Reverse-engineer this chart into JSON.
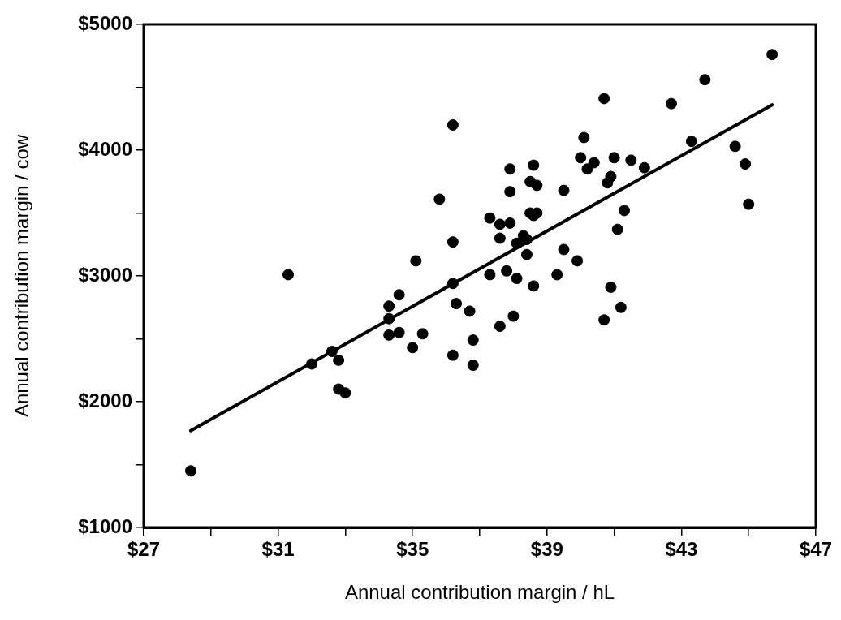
{
  "chart_data": {
    "type": "scatter",
    "xlabel": "Annual contribution margin / hL",
    "ylabel": "Annual contribution margin / cow",
    "xlim": [
      27,
      47
    ],
    "xticks": [
      {
        "value": 27,
        "label": "$27"
      },
      {
        "value": 29,
        "label": null
      },
      {
        "value": 31,
        "label": "$31"
      },
      {
        "value": 33,
        "label": null
      },
      {
        "value": 35,
        "label": "$35"
      },
      {
        "value": 37,
        "label": null
      },
      {
        "value": 39,
        "label": "$39"
      },
      {
        "value": 41,
        "label": null
      },
      {
        "value": 43,
        "label": "$43"
      },
      {
        "value": 45,
        "label": null
      },
      {
        "value": 47,
        "label": "$47"
      }
    ],
    "ylim": [
      1000,
      5000
    ],
    "yticks": [
      {
        "value": 1000,
        "label": "$1000"
      },
      {
        "value": 1500,
        "label": null
      },
      {
        "value": 2000,
        "label": "$2000"
      },
      {
        "value": 2500,
        "label": null
      },
      {
        "value": 3000,
        "label": "$3000"
      },
      {
        "value": 3500,
        "label": null
      },
      {
        "value": 4000,
        "label": "$4000"
      },
      {
        "value": 4500,
        "label": null
      },
      {
        "value": 5000,
        "label": "$5000"
      }
    ],
    "grid": false,
    "legend": false,
    "marker": "circle",
    "series": [
      {
        "type": "scatter",
        "color": "#000000",
        "x": [
          28.4,
          31.3,
          32.0,
          32.6,
          32.8,
          32.8,
          33.0,
          34.6,
          34.3,
          34.3,
          34.3,
          34.6,
          35.3,
          35.0,
          35.1,
          35.8,
          36.2,
          36.2,
          36.2,
          36.3,
          36.7,
          36.8,
          36.2,
          36.8,
          37.3,
          37.6,
          37.9,
          37.6,
          37.9,
          37.9,
          38.6,
          38.5,
          38.7,
          38.5,
          38.7,
          38.6,
          38.1,
          38.3,
          38.4,
          38.4,
          37.3,
          37.8,
          38.1,
          38.6,
          37.6,
          38.0,
          39.5,
          39.9,
          39.3,
          39.5,
          40.1,
          40.0,
          40.2,
          40.4,
          45.7,
          43.7,
          42.7,
          40.7,
          41.0,
          41.5,
          41.9,
          43.3,
          44.6,
          44.9,
          45.0,
          40.9,
          40.8,
          41.3,
          41.1,
          40.9,
          41.2,
          40.7
        ],
        "values": [
          1450,
          3010,
          2300,
          2400,
          2330,
          2100,
          2070,
          2850,
          2760,
          2660,
          2530,
          2550,
          2540,
          2430,
          3120,
          3610,
          4200,
          3270,
          2940,
          2780,
          2720,
          2490,
          2370,
          2290,
          3460,
          3410,
          3420,
          3300,
          3850,
          3670,
          3880,
          3750,
          3720,
          3500,
          3500,
          3480,
          3260,
          3320,
          3290,
          3170,
          3010,
          3040,
          2980,
          2920,
          2600,
          2680,
          3210,
          3120,
          3010,
          3680,
          4100,
          3940,
          3850,
          3900,
          4760,
          4560,
          4370,
          4410,
          3940,
          3920,
          3860,
          4070,
          4030,
          3890,
          3570,
          3790,
          3740,
          3520,
          3370,
          2910,
          2750,
          2650
        ]
      },
      {
        "type": "line",
        "color": "#000000",
        "x": [
          28.4,
          45.7
        ],
        "values": [
          1770,
          4360
        ],
        "marker": "none"
      }
    ]
  }
}
